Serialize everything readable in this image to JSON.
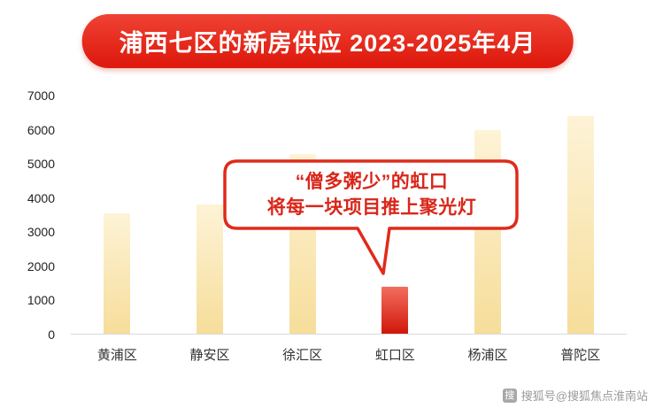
{
  "banner": {
    "title": "浦西七区的新房供应 2023-2025年4月"
  },
  "chart_data": {
    "type": "bar",
    "title": "浦西七区的新房供应 2023-2025年4月",
    "categories": [
      "黄浦区",
      "静安区",
      "徐汇区",
      "虹口区",
      "杨浦区",
      "普陀区"
    ],
    "values": [
      3550,
      3800,
      5300,
      1400,
      6000,
      6400
    ],
    "xlabel": "",
    "ylabel": "",
    "ylim": [
      0,
      7000
    ],
    "yticks": [
      0,
      1000,
      2000,
      3000,
      4000,
      5000,
      6000,
      7000
    ],
    "grid": false,
    "legend": false,
    "highlight_category": "虹口区",
    "colors": {
      "bar_top": "#fdf3d6",
      "bar_bottom": "#f6dd9a",
      "highlight_top": "#f26e5f",
      "highlight_bottom": "#d01508"
    }
  },
  "callout": {
    "line1": "“僧多粥少”的虹口",
    "line2": "将每一块项目推上聚光灯",
    "border_color": "#e02a1a",
    "text_color": "#d9261a"
  },
  "watermark": {
    "icon_glyph": "搜",
    "text": "搜狐号@搜狐焦点淮南站"
  },
  "theme": {
    "banner_red": "#e1251b",
    "axis_text": "#1f1f1f",
    "background": "#ffffff"
  }
}
